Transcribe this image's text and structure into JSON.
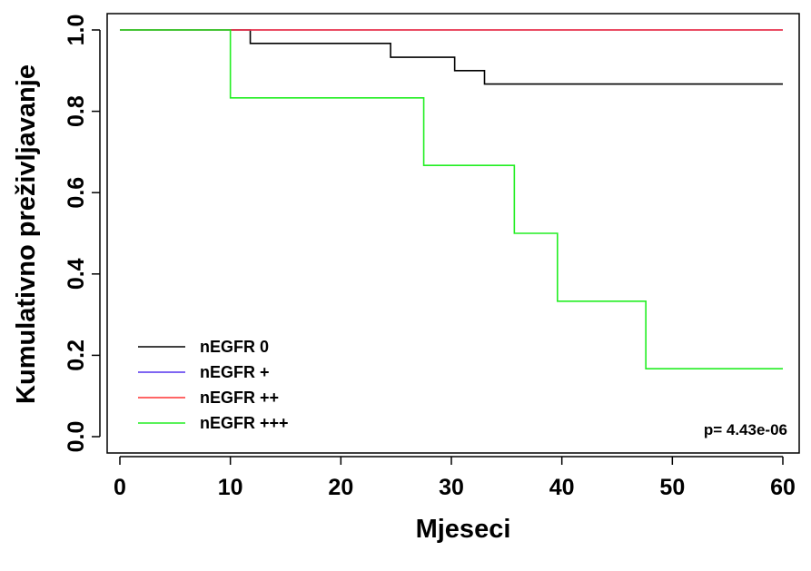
{
  "chart_data": {
    "type": "line",
    "title": "",
    "xlabel": "Mjeseci",
    "ylabel": "Kumulativno preživljavanje",
    "xlim": [
      0,
      60
    ],
    "ylim": [
      0,
      1
    ],
    "x_ticks": [
      "0",
      "10",
      "20",
      "30",
      "40",
      "50",
      "60"
    ],
    "y_ticks": [
      "0.0",
      "0.2",
      "0.4",
      "0.6",
      "0.8",
      "1.0"
    ],
    "step": true,
    "grid": false,
    "legend_position": "bottom-left",
    "series": [
      {
        "name": "nEGFR 0",
        "color": "#000000",
        "x": [
          0,
          11.8,
          24.5,
          30.3,
          33.0,
          60
        ],
        "y": [
          1.0,
          0.967,
          0.933,
          0.9,
          0.867,
          0.867
        ]
      },
      {
        "name": "nEGFR +",
        "color": "#5533ee",
        "x": [
          0,
          60
        ],
        "y": [
          1.0,
          1.0
        ]
      },
      {
        "name": "nEGFR ++",
        "color": "#ff3333",
        "x": [
          0,
          60
        ],
        "y": [
          1.0,
          1.0
        ]
      },
      {
        "name": "nEGFR +++",
        "color": "#22ee22",
        "x": [
          0,
          10.0,
          27.5,
          35.7,
          39.6,
          47.6,
          60
        ],
        "y": [
          1.0,
          0.833,
          0.667,
          0.5,
          0.333,
          0.167,
          0.167
        ]
      }
    ],
    "annotation": "p= 4.43e-06"
  }
}
